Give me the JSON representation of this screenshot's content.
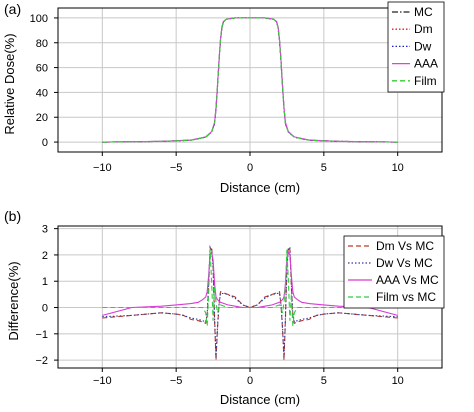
{
  "chart_data": [
    {
      "type": "line",
      "panel_label": "(a)",
      "xlabel": "Distance (cm)",
      "ylabel": "Relative Dose(%)",
      "xlim": [
        -13,
        13
      ],
      "ylim": [
        -8,
        108
      ],
      "x_ticks": [
        -10,
        -5,
        0,
        5,
        10
      ],
      "y_ticks": [
        0,
        20,
        40,
        60,
        80,
        100
      ],
      "grid": true,
      "legend_position": "top-right",
      "series": [
        {
          "name": "MC",
          "color": "#222222",
          "dash": "dash-dot",
          "x": [
            -10,
            -6,
            -4,
            -3,
            -2.6,
            -2.4,
            -2.3,
            -2.2,
            -2.1,
            -2.0,
            -1.9,
            -1.8,
            -1.6,
            -1.0,
            0,
            1.0,
            1.6,
            1.8,
            1.9,
            2.0,
            2.1,
            2.2,
            2.3,
            2.4,
            2.6,
            3,
            4,
            6,
            10
          ],
          "y": [
            0,
            0.5,
            1.5,
            4,
            8,
            15,
            27,
            45,
            65,
            82,
            92,
            97,
            99,
            100,
            100,
            100,
            99,
            97,
            92,
            82,
            65,
            45,
            27,
            15,
            8,
            4,
            1.5,
            0.5,
            0
          ]
        },
        {
          "name": "Dm",
          "color": "#e41a1c",
          "dash": "dot",
          "x": [
            -10,
            -6,
            -4,
            -3,
            -2.6,
            -2.4,
            -2.3,
            -2.2,
            -2.1,
            -2.0,
            -1.9,
            -1.8,
            -1.6,
            -1.0,
            0,
            1.0,
            1.6,
            1.8,
            1.9,
            2.0,
            2.1,
            2.2,
            2.3,
            2.4,
            2.6,
            3,
            4,
            6,
            10
          ],
          "y": [
            0,
            0.5,
            1.5,
            4,
            8,
            15,
            27,
            45,
            65,
            82,
            92,
            97,
            99,
            100,
            100,
            100,
            99,
            97,
            92,
            82,
            65,
            45,
            27,
            15,
            8,
            4,
            1.5,
            0.5,
            0
          ]
        },
        {
          "name": "Dw",
          "color": "#1f1fd0",
          "dash": "dot",
          "x": [
            -10,
            -6,
            -4,
            -3,
            -2.6,
            -2.4,
            -2.3,
            -2.2,
            -2.1,
            -2.0,
            -1.9,
            -1.8,
            -1.6,
            -1.0,
            0,
            1.0,
            1.6,
            1.8,
            1.9,
            2.0,
            2.1,
            2.2,
            2.3,
            2.4,
            2.6,
            3,
            4,
            6,
            10
          ],
          "y": [
            0,
            0.5,
            1.5,
            4,
            8,
            15,
            27,
            45,
            65,
            82,
            92,
            97,
            99,
            100,
            100,
            100,
            99,
            97,
            92,
            82,
            65,
            45,
            27,
            15,
            8,
            4,
            1.5,
            0.5,
            0
          ]
        },
        {
          "name": "AAA",
          "color": "#e040e0",
          "dash": "solid",
          "x": [
            -10,
            -6,
            -4,
            -3,
            -2.6,
            -2.4,
            -2.3,
            -2.2,
            -2.1,
            -2.0,
            -1.9,
            -1.8,
            -1.6,
            -1.0,
            0,
            1.0,
            1.6,
            1.8,
            1.9,
            2.0,
            2.1,
            2.2,
            2.3,
            2.4,
            2.6,
            3,
            4,
            6,
            10
          ],
          "y": [
            0,
            0.6,
            1.6,
            4.2,
            8.5,
            16,
            28,
            46,
            66,
            83,
            93,
            97,
            99,
            100,
            100,
            100,
            99,
            97,
            93,
            83,
            66,
            46,
            28,
            16,
            8.5,
            4.2,
            1.6,
            0.6,
            0
          ]
        },
        {
          "name": "Film",
          "color": "#33cc33",
          "dash": "dash",
          "x": [
            -10,
            -6,
            -4,
            -3,
            -2.6,
            -2.4,
            -2.3,
            -2.2,
            -2.1,
            -2.0,
            -1.9,
            -1.8,
            -1.6,
            -1.0,
            0,
            1.0,
            1.6,
            1.8,
            1.9,
            2.0,
            2.1,
            2.2,
            2.3,
            2.4,
            2.6,
            3,
            4,
            6,
            10
          ],
          "y": [
            0,
            0.5,
            1.5,
            4,
            8,
            15,
            27,
            45,
            65,
            82,
            92,
            97,
            99,
            100,
            100,
            100,
            99,
            97,
            92,
            82,
            65,
            45,
            27,
            15,
            8,
            4,
            1.5,
            0.5,
            0
          ]
        }
      ]
    },
    {
      "type": "line",
      "panel_label": "(b)",
      "xlabel": "Distance (cm)",
      "ylabel": "Difference(%)",
      "xlim": [
        -13,
        13
      ],
      "ylim": [
        -2.3,
        3.1
      ],
      "x_ticks": [
        -10,
        -5,
        0,
        5,
        10
      ],
      "y_ticks": [
        -2,
        -1,
        0,
        1,
        2,
        3
      ],
      "grid": true,
      "legend_position": "top-right",
      "series": [
        {
          "name": "Dm Vs MC",
          "color": "#c0392b",
          "dash": "dash",
          "x": [
            -10,
            -8,
            -6,
            -5,
            -4.5,
            -4,
            -3.5,
            -3.2,
            -3.0,
            -2.9,
            -2.8,
            -2.7,
            -2.6,
            -2.5,
            -2.4,
            -2.3,
            -2.2,
            -2.1,
            -2.0,
            -1.5,
            -1,
            -0.5,
            0,
            0.5,
            1,
            1.5,
            2.0,
            2.1,
            2.2,
            2.3,
            2.4,
            2.5,
            2.6,
            2.7,
            2.8,
            2.9,
            3.0,
            3.2,
            3.5,
            4,
            4.5,
            5,
            6,
            8,
            10
          ],
          "y": [
            -0.4,
            -0.3,
            -0.2,
            -0.25,
            -0.3,
            -0.45,
            -0.5,
            -0.55,
            -0.6,
            -0.3,
            0.8,
            2.2,
            2.3,
            1.6,
            -0.5,
            -2.0,
            -0.8,
            0.1,
            0.6,
            0.5,
            0.4,
            0.1,
            0.0,
            0.1,
            0.4,
            0.5,
            0.6,
            0.1,
            -0.8,
            -2.0,
            -0.5,
            1.6,
            2.3,
            2.2,
            0.8,
            -0.3,
            -0.6,
            -0.55,
            -0.5,
            -0.45,
            -0.3,
            -0.25,
            -0.2,
            -0.3,
            -0.4
          ]
        },
        {
          "name": "Dw Vs MC",
          "color": "#2c3e9e",
          "dash": "dot",
          "x": [
            -10,
            -8,
            -6,
            -5,
            -4.5,
            -4,
            -3.5,
            -3.2,
            -3.0,
            -2.9,
            -2.8,
            -2.7,
            -2.6,
            -2.5,
            -2.4,
            -2.3,
            -2.2,
            -2.1,
            -2.0,
            -1.5,
            -1,
            -0.5,
            0,
            0.5,
            1,
            1.5,
            2.0,
            2.1,
            2.2,
            2.3,
            2.4,
            2.5,
            2.6,
            2.7,
            2.8,
            2.9,
            3.0,
            3.2,
            3.5,
            4,
            4.5,
            5,
            6,
            8,
            10
          ],
          "y": [
            -0.35,
            -0.3,
            -0.2,
            -0.25,
            -0.3,
            -0.4,
            -0.45,
            -0.5,
            -0.55,
            -0.25,
            0.9,
            2.3,
            2.2,
            1.5,
            -0.4,
            -1.9,
            -0.7,
            0.1,
            0.55,
            0.5,
            0.35,
            0.1,
            0.0,
            0.1,
            0.35,
            0.5,
            0.55,
            0.1,
            -0.7,
            -1.9,
            -0.4,
            1.5,
            2.2,
            2.3,
            0.9,
            -0.25,
            -0.55,
            -0.5,
            -0.45,
            -0.4,
            -0.3,
            -0.25,
            -0.2,
            -0.3,
            -0.35
          ]
        },
        {
          "name": "AAA Vs MC",
          "color": "#d63bd6",
          "dash": "solid",
          "x": [
            -10,
            -8,
            -6,
            -5,
            -4,
            -3.5,
            -3.2,
            -3.0,
            -2.9,
            -2.8,
            -2.7,
            -2.6,
            -2.5,
            -2.4,
            -2.3,
            -2.2,
            -2.0,
            -1.5,
            -1,
            -0.5,
            0,
            0.5,
            1,
            1.5,
            2.0,
            2.2,
            2.3,
            2.4,
            2.5,
            2.6,
            2.7,
            2.8,
            2.9,
            3.0,
            3.2,
            3.5,
            4,
            5,
            6,
            8,
            10
          ],
          "y": [
            -0.3,
            0.0,
            0.05,
            0.1,
            0.15,
            0.2,
            0.3,
            0.4,
            0.6,
            1.2,
            2.0,
            2.1,
            1.8,
            0.9,
            0.4,
            0.3,
            0.2,
            0.1,
            0.05,
            0.0,
            0.0,
            0.0,
            0.05,
            0.1,
            0.2,
            0.3,
            0.4,
            0.9,
            1.8,
            2.1,
            2.0,
            1.2,
            0.6,
            0.4,
            0.3,
            0.2,
            0.15,
            0.1,
            0.05,
            0.0,
            -0.3
          ]
        },
        {
          "name": "Film vs MC",
          "color": "#2ecc40",
          "dash": "dash",
          "x": [
            -10,
            -8,
            -6,
            -5,
            -4,
            -3.5,
            -3.2,
            -3.0,
            -2.9,
            -2.8,
            -2.7,
            -2.6,
            -2.5,
            -2.4,
            -2.3,
            -2.2,
            -2.1,
            -2.0,
            -1.5,
            -1,
            -0.5,
            0,
            0.5,
            1,
            1.5,
            2.0,
            2.1,
            2.2,
            2.3,
            2.4,
            2.5,
            2.6,
            2.7,
            2.8,
            2.9,
            3.0,
            3.2,
            3.5,
            4,
            5,
            6,
            8,
            10
          ],
          "y": [
            0.0,
            0.0,
            0.0,
            0.0,
            0.0,
            0.0,
            0.0,
            -0.2,
            -0.7,
            0.5,
            2.2,
            1.0,
            -0.5,
            0.8,
            0.2,
            -0.2,
            0.0,
            0.1,
            0.0,
            0.0,
            0.0,
            0.0,
            0.0,
            0.0,
            0.0,
            0.1,
            0.0,
            -0.2,
            0.2,
            0.8,
            2.2,
            1.0,
            -0.5,
            0.5,
            -0.7,
            -0.2,
            0.0,
            0.0,
            0.0,
            0.0,
            0.0,
            0.0,
            0.0
          ]
        }
      ]
    }
  ]
}
